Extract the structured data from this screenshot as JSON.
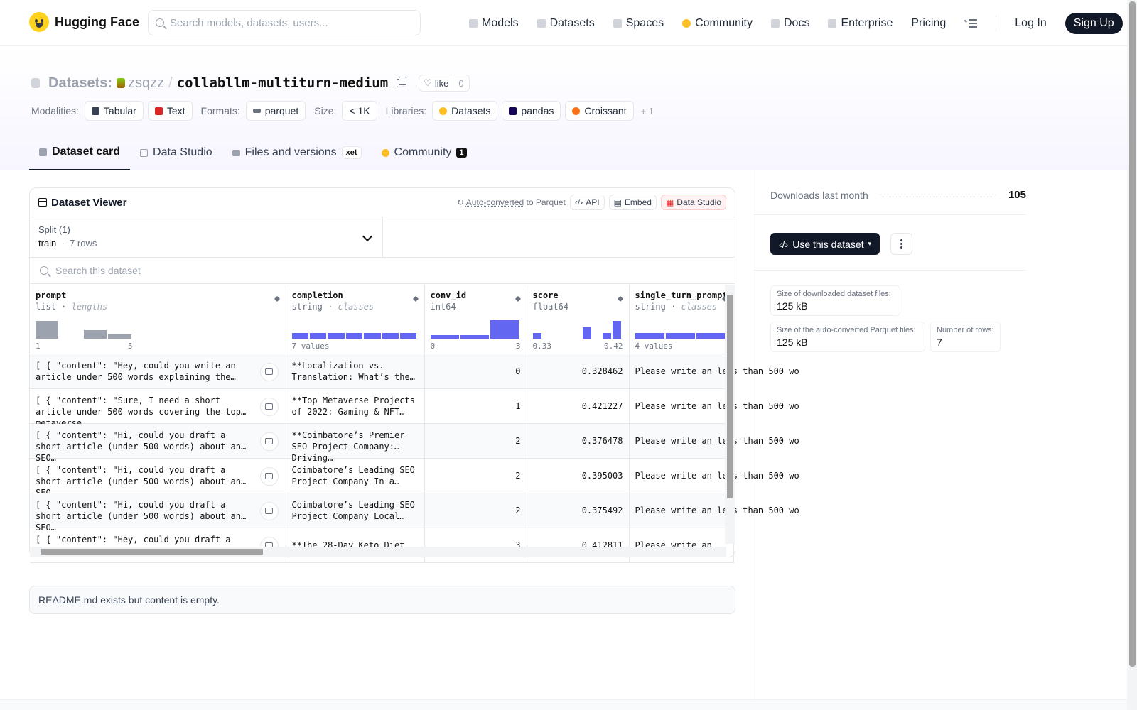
{
  "nav": {
    "brand": "Hugging Face",
    "search_placeholder": "Search models, datasets, users...",
    "links": [
      "Models",
      "Datasets",
      "Spaces",
      "Community",
      "Docs",
      "Enterprise",
      "Pricing"
    ],
    "login": "Log In",
    "signup": "Sign Up"
  },
  "header": {
    "crumb_label": "Datasets:",
    "owner": "zsqzz",
    "repo": "collabllm-multiturn-medium",
    "like_label": "like",
    "like_count": "0",
    "modalities_label": "Modalities:",
    "modalities": [
      "Tabular",
      "Text"
    ],
    "formats_label": "Formats:",
    "formats": [
      "parquet"
    ],
    "size_label": "Size:",
    "size": "< 1K",
    "libraries_label": "Libraries:",
    "libraries": [
      "Datasets",
      "pandas",
      "Croissant"
    ],
    "more": "+ 1"
  },
  "tabs": {
    "dataset_card": "Dataset card",
    "data_studio": "Data Studio",
    "files": "Files and versions",
    "xet": "xet",
    "community": "Community",
    "community_count": "1"
  },
  "viewer": {
    "title": "Dataset Viewer",
    "auto_converted": "Auto-converted",
    "to_parquet": "to Parquet",
    "api": "API",
    "embed": "Embed",
    "data_studio": "Data Studio",
    "split_label": "Split (1)",
    "split_value": "train",
    "split_rows": "7 rows",
    "search_placeholder": "Search this dataset"
  },
  "columns": [
    {
      "name": "prompt",
      "type": "list",
      "stat": "lengths",
      "min": "1",
      "max": "5",
      "hist": [
        0.95,
        0,
        0.45,
        0.22
      ],
      "color": "#9ca3af"
    },
    {
      "name": "completion",
      "type": "string",
      "stat": "classes",
      "summary": "7 values",
      "hist": [
        0.3,
        0.3,
        0.3,
        0.3,
        0.3,
        0.3,
        0.3
      ],
      "color": "#6366f1"
    },
    {
      "name": "conv_id",
      "type": "int64",
      "min": "0",
      "max": "3",
      "hist": [
        0.2,
        0.2,
        1.0
      ],
      "color": "#6366f1"
    },
    {
      "name": "score",
      "type": "float64",
      "min": "0.33",
      "max": "0.42",
      "hist": [
        0.3,
        0,
        0,
        0,
        0,
        0.6,
        0,
        0.3,
        0.95
      ],
      "color": "#6366f1"
    },
    {
      "name": "single_turn_prompt",
      "type": "string",
      "stat": "classes",
      "summary": "4 values",
      "hist": [
        0.3,
        0.3,
        0.3
      ],
      "color": "#6366f1"
    }
  ],
  "rows": [
    {
      "prompt": "[ { \"content\": \"Hey, could you write an article under 500 words explaining the…",
      "completion": "**Localization vs. Translation: What’s the…",
      "conv_id": "0",
      "score": "0.328462",
      "single": "Please write an less than 500 wo"
    },
    {
      "prompt": "[ { \"content\": \"Sure, I need a short article under 500 words covering the top metaverse…",
      "completion": "**Top Metaverse Projects of 2022: Gaming & NFT…",
      "conv_id": "1",
      "score": "0.421227",
      "single": "Please write an less than 500 wo"
    },
    {
      "prompt": "[ { \"content\": \"Hi, could you draft a short article (under 500 words) about an SEO…",
      "completion": "**Coimbatore’s Premier SEO Project Company: Driving…",
      "conv_id": "2",
      "score": "0.376478",
      "single": "Please write an less than 500 wo"
    },
    {
      "prompt": "[ { \"content\": \"Hi, could you draft a short article (under 500 words) about an SEO…",
      "completion": "Coimbatore’s Leading SEO Project Company In a…",
      "conv_id": "2",
      "score": "0.395003",
      "single": "Please write an less than 500 wo"
    },
    {
      "prompt": "[ { \"content\": \"Hi, could you draft a short article (under 500 words) about an SEO…",
      "completion": "Coimbatore’s Leading SEO Project Company Local…",
      "conv_id": "2",
      "score": "0.375492",
      "single": "Please write an less than 500 wo"
    },
    {
      "prompt": "[ { \"content\": \"Hey, could you draft a short",
      "completion": "**The 28-Day Keto Diet",
      "conv_id": "3",
      "score": "0.412811",
      "single": "Please write an"
    }
  ],
  "readme": "README.md exists but content is empty.",
  "sidebar": {
    "downloads_label": "Downloads last month",
    "downloads": "105",
    "use_dataset": "Use this dataset",
    "dl_size_label": "Size of downloaded dataset files:",
    "dl_size": "125 kB",
    "parquet_size_label": "Size of the auto-converted Parquet files:",
    "parquet_size": "125 kB",
    "rows_label": "Number of rows:",
    "rows": "7"
  }
}
